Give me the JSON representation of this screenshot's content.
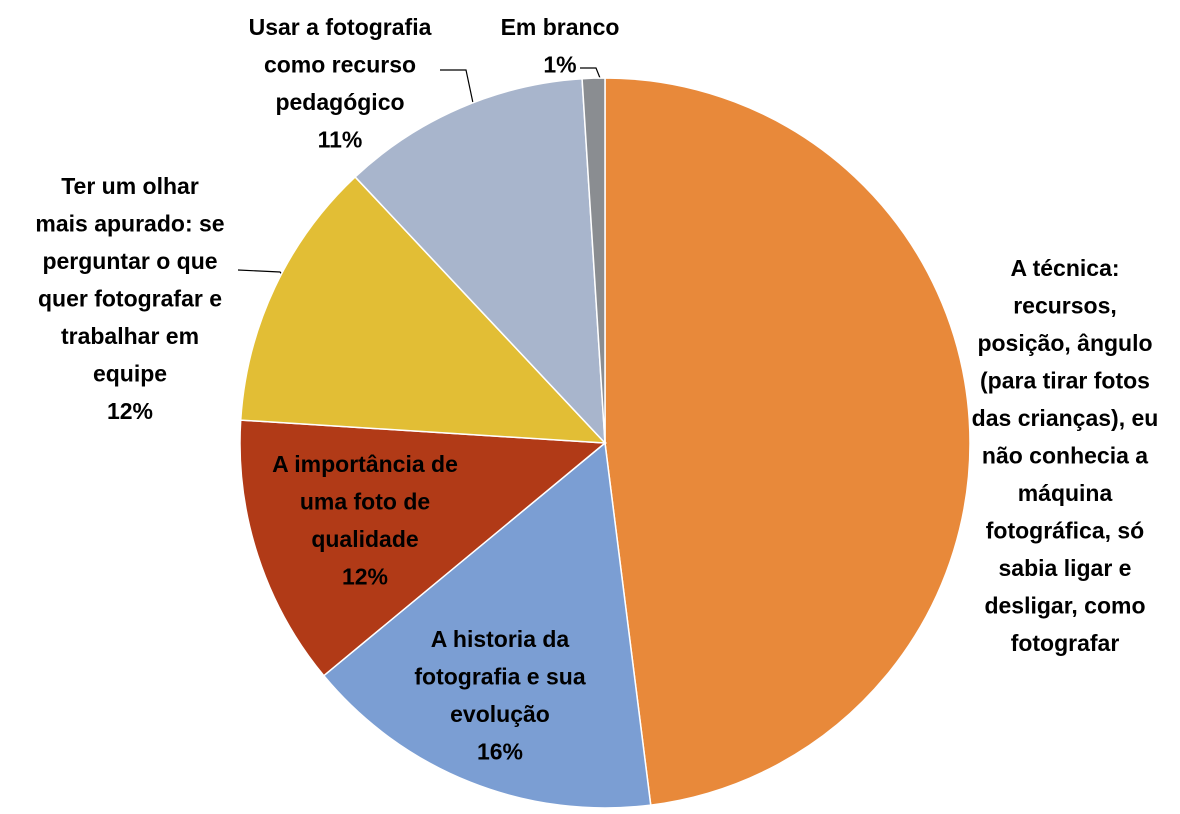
{
  "chart_data": {
    "type": "pie",
    "categories": [
      "A técnica:\nrecursos,\nposição, ângulo\n(para tirar fotos\ndas crianças), eu\nnão conhecia a\nmáquina\nfotográfica, só\nsabia ligar e\ndesligar, como\nfotografar",
      "A historia da\nfotografia e sua\nevolução",
      "A importância de\numa foto de\nqualidade",
      "Ter um olhar\nmais apurado: se\nperguntar o que\nquer fotografar e\ntrabalhar em\nequipe",
      "Usar a fotografia\ncomo recurso\npedagógico",
      "Em branco"
    ],
    "values": [
      48,
      16,
      12,
      12,
      11,
      1
    ],
    "value_labels": [
      null,
      "16%",
      "12%",
      "12%",
      "11%",
      "1%"
    ],
    "colors": [
      "#E8893A",
      "#7B9ED3",
      "#B13A17",
      "#E2BE35",
      "#A8B5CC",
      "#8A8D91"
    ]
  }
}
